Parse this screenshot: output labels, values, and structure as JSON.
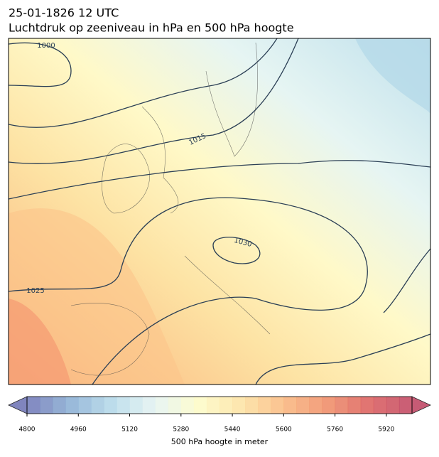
{
  "title": "25-01-1826 12 UTC",
  "subtitle": "Luchtdruk op zeeniveau in hPa en 500 hPa hoogte",
  "contour_labels": [
    "1000",
    "1015",
    "1025",
    "1030"
  ],
  "colorbar": {
    "label": "500 hPa hoogte in meter",
    "lim": [
      4800,
      6000
    ],
    "step": 40,
    "ticks": [
      4800,
      4960,
      5120,
      5280,
      5440,
      5600,
      5760,
      5920
    ],
    "colors": [
      "#6b70b3",
      "#86acd2",
      "#b2d8e9",
      "#e4f3f1",
      "#fdfbc6",
      "#fde2a0",
      "#f9b67c",
      "#ef8a64",
      "#db5b58",
      "#bd3f5e"
    ]
  }
}
